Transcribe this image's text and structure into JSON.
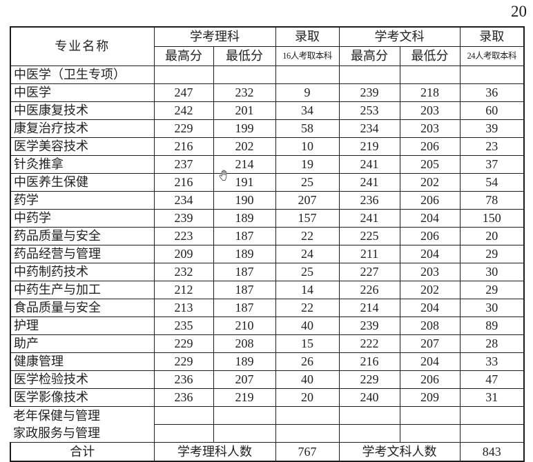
{
  "page_number": "20",
  "colors": {
    "border": "#1c1c1c",
    "text": "#222222",
    "background": "#ffffff"
  },
  "cursor": {
    "type": "open-hand-cursor"
  },
  "table": {
    "header": {
      "program": "专业名称",
      "science_group": "学考理科",
      "science_admit": "录取",
      "science_admit_note": "16人考取本科",
      "arts_group": "学考文科",
      "arts_admit": "录取",
      "arts_admit_note": "24人考取本科",
      "max_score": "最高分",
      "min_score": "最低分"
    },
    "rows": [
      {
        "name": "中医学（卫生专项）",
        "cells": [
          "",
          "",
          "",
          "",
          "",
          ""
        ]
      },
      {
        "name": "中医学",
        "cells": [
          "247",
          "232",
          "9",
          "239",
          "218",
          "36"
        ]
      },
      {
        "name": "中医康复技术",
        "cells": [
          "242",
          "201",
          "34",
          "253",
          "203",
          "60"
        ]
      },
      {
        "name": "康复治疗技术",
        "cells": [
          "229",
          "199",
          "58",
          "234",
          "203",
          "39"
        ]
      },
      {
        "name": "医学美容技术",
        "cells": [
          "216",
          "202",
          "10",
          "219",
          "206",
          "23"
        ]
      },
      {
        "name": "针灸推拿",
        "cells": [
          "237",
          "214",
          "19",
          "241",
          "205",
          "37"
        ]
      },
      {
        "name": "中医养生保健",
        "cells": [
          "216",
          "191",
          "25",
          "241",
          "202",
          "54"
        ]
      },
      {
        "name": "药学",
        "cells": [
          "234",
          "190",
          "207",
          "236",
          "206",
          "78"
        ]
      },
      {
        "name": "中药学",
        "cells": [
          "239",
          "189",
          "157",
          "241",
          "204",
          "150"
        ]
      },
      {
        "name": "药品质量与安全",
        "cells": [
          "223",
          "187",
          "22",
          "225",
          "206",
          "20"
        ]
      },
      {
        "name": "药品经营与管理",
        "cells": [
          "209",
          "189",
          "24",
          "211",
          "204",
          "29"
        ]
      },
      {
        "name": "中药制药技术",
        "cells": [
          "232",
          "187",
          "25",
          "227",
          "203",
          "30"
        ]
      },
      {
        "name": "中药生产与加工",
        "cells": [
          "212",
          "187",
          "14",
          "226",
          "202",
          "29"
        ]
      },
      {
        "name": "食品质量与安全",
        "cells": [
          "213",
          "187",
          "22",
          "214",
          "204",
          "30"
        ]
      },
      {
        "name": "护理",
        "cells": [
          "235",
          "210",
          "40",
          "239",
          "208",
          "89"
        ]
      },
      {
        "name": "助产",
        "cells": [
          "229",
          "208",
          "15",
          "222",
          "207",
          "28"
        ]
      },
      {
        "name": "健康管理",
        "cells": [
          "229",
          "189",
          "26",
          "216",
          "204",
          "33"
        ]
      },
      {
        "name": "医学检验技术",
        "cells": [
          "236",
          "207",
          "40",
          "229",
          "206",
          "47"
        ]
      },
      {
        "name": "医学影像技术",
        "cells": [
          "236",
          "219",
          "20",
          "240",
          "209",
          "31"
        ]
      }
    ],
    "merged_rows": {
      "lines": [
        "老年保健与管理",
        "家政服务与管理"
      ]
    },
    "footer": {
      "label": "合计",
      "science_count_label": "学考理科人数",
      "science_count": "767",
      "arts_count_label": "学考文科人数",
      "arts_count": "843"
    }
  }
}
